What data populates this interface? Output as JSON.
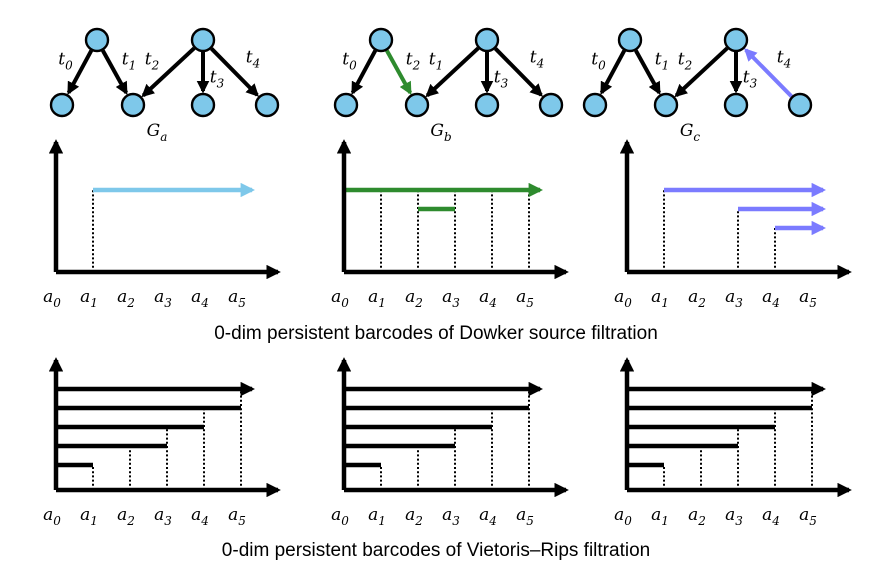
{
  "captions": {
    "dowker": "0-dim persistent barcodes of Dowker source filtration",
    "rips": "0-dim persistent barcodes of Vietoris–Rips filtration"
  },
  "ticks": [
    {
      "base": "a",
      "sub": "0"
    },
    {
      "base": "a",
      "sub": "1"
    },
    {
      "base": "a",
      "sub": "2"
    },
    {
      "base": "a",
      "sub": "3"
    },
    {
      "base": "a",
      "sub": "4"
    },
    {
      "base": "a",
      "sub": "5"
    }
  ],
  "colors": {
    "node_fill": "#7ec8ea",
    "black": "#000000",
    "light_blue": "#7ec8ea",
    "green": "#2e8b2e",
    "purple": "#7b7bff"
  },
  "graphs": [
    {
      "label": {
        "base": "G",
        "sub": "a"
      },
      "edges": [
        {
          "from": 0,
          "to": 1,
          "label": {
            "base": "t",
            "sub": "0"
          },
          "color": "black"
        },
        {
          "from": 0,
          "to": 2,
          "label": {
            "base": "t",
            "sub": "1"
          },
          "color": "black"
        },
        {
          "from": 4,
          "to": 2,
          "label": {
            "base": "t",
            "sub": "2"
          },
          "color": "black"
        },
        {
          "from": 4,
          "to": 3,
          "label": {
            "base": "t",
            "sub": "3"
          },
          "color": "black"
        },
        {
          "from": 4,
          "to": 5,
          "label": {
            "base": "t",
            "sub": "4"
          },
          "color": "black"
        }
      ]
    },
    {
      "label": {
        "base": "G",
        "sub": "b"
      },
      "edges": [
        {
          "from": 0,
          "to": 1,
          "label": {
            "base": "t",
            "sub": "0"
          },
          "color": "black"
        },
        {
          "from": 0,
          "to": 2,
          "label": {
            "base": "t",
            "sub": "2"
          },
          "color": "green",
          "label_color": "green"
        },
        {
          "from": 4,
          "to": 2,
          "label": {
            "base": "t",
            "sub": "1"
          },
          "color": "black",
          "label_color": "green"
        },
        {
          "from": 4,
          "to": 3,
          "label": {
            "base": "t",
            "sub": "3"
          },
          "color": "black"
        },
        {
          "from": 4,
          "to": 5,
          "label": {
            "base": "t",
            "sub": "4"
          },
          "color": "black"
        }
      ]
    },
    {
      "label": {
        "base": "G",
        "sub": "c"
      },
      "edges": [
        {
          "from": 0,
          "to": 1,
          "label": {
            "base": "t",
            "sub": "0"
          },
          "color": "black"
        },
        {
          "from": 0,
          "to": 2,
          "label": {
            "base": "t",
            "sub": "1"
          },
          "color": "black"
        },
        {
          "from": 4,
          "to": 2,
          "label": {
            "base": "t",
            "sub": "2"
          },
          "color": "black"
        },
        {
          "from": 4,
          "to": 3,
          "label": {
            "base": "t",
            "sub": "3"
          },
          "color": "black"
        },
        {
          "from": 5,
          "to": 4,
          "label": {
            "base": "t",
            "sub": "4"
          },
          "color": "purple"
        }
      ]
    }
  ],
  "barcodes": [
    {
      "id": "dowker-a",
      "bars": [
        {
          "birth": 1,
          "death": null,
          "color": "light_blue",
          "level": 4
        }
      ],
      "verticals": [
        {
          "x": 1,
          "level": 4
        }
      ]
    },
    {
      "id": "dowker-b",
      "bars": [
        {
          "birth": 0,
          "death": null,
          "color": "green",
          "level": 4
        },
        {
          "birth": 2,
          "death": 3,
          "color": "green",
          "level": 3
        }
      ],
      "verticals": [
        {
          "x": 1,
          "level": 4
        },
        {
          "x": 2,
          "level": 4
        },
        {
          "x": 3,
          "level": 4
        },
        {
          "x": 4,
          "level": 4
        },
        {
          "x": 5,
          "level": 4
        }
      ]
    },
    {
      "id": "dowker-c",
      "bars": [
        {
          "birth": 1,
          "death": null,
          "color": "purple",
          "level": 4
        },
        {
          "birth": 3,
          "death": null,
          "color": "purple",
          "level": 3
        },
        {
          "birth": 4,
          "death": null,
          "color": "purple",
          "level": 2
        }
      ],
      "verticals": [
        {
          "x": 1,
          "level": 4
        },
        {
          "x": 3,
          "level": 3
        },
        {
          "x": 4,
          "level": 2
        }
      ]
    },
    {
      "id": "rips-a",
      "bars": [
        {
          "birth": 0,
          "death": null,
          "color": "black",
          "level": 5
        },
        {
          "birth": 0,
          "death": 5,
          "color": "black",
          "level": 4
        },
        {
          "birth": 0,
          "death": 4,
          "color": "black",
          "level": 3
        },
        {
          "birth": 0,
          "death": 3,
          "color": "black",
          "level": 2
        },
        {
          "birth": 0,
          "death": 1,
          "color": "black",
          "level": 1
        }
      ],
      "verticals": [
        {
          "x": 1,
          "level": 1
        },
        {
          "x": 2,
          "level": 2
        },
        {
          "x": 3,
          "level": 3
        },
        {
          "x": 4,
          "level": 4
        },
        {
          "x": 5,
          "level": 5
        }
      ]
    },
    {
      "id": "rips-b",
      "bars": [
        {
          "birth": 0,
          "death": null,
          "color": "black",
          "level": 5
        },
        {
          "birth": 0,
          "death": 5,
          "color": "black",
          "level": 4
        },
        {
          "birth": 0,
          "death": 4,
          "color": "black",
          "level": 3
        },
        {
          "birth": 0,
          "death": 3,
          "color": "black",
          "level": 2
        },
        {
          "birth": 0,
          "death": 1,
          "color": "black",
          "level": 1
        }
      ],
      "verticals": [
        {
          "x": 1,
          "level": 1
        },
        {
          "x": 2,
          "level": 2
        },
        {
          "x": 3,
          "level": 3
        },
        {
          "x": 4,
          "level": 4
        },
        {
          "x": 5,
          "level": 5
        }
      ]
    },
    {
      "id": "rips-c",
      "bars": [
        {
          "birth": 0,
          "death": null,
          "color": "black",
          "level": 5
        },
        {
          "birth": 0,
          "death": 5,
          "color": "black",
          "level": 4
        },
        {
          "birth": 0,
          "death": 4,
          "color": "black",
          "level": 3
        },
        {
          "birth": 0,
          "death": 3,
          "color": "black",
          "level": 2
        },
        {
          "birth": 0,
          "death": 1,
          "color": "black",
          "level": 1
        }
      ],
      "verticals": [
        {
          "x": 1,
          "level": 1
        },
        {
          "x": 2,
          "level": 2
        },
        {
          "x": 3,
          "level": 3
        },
        {
          "x": 4,
          "level": 4
        },
        {
          "x": 5,
          "level": 5
        }
      ]
    }
  ]
}
